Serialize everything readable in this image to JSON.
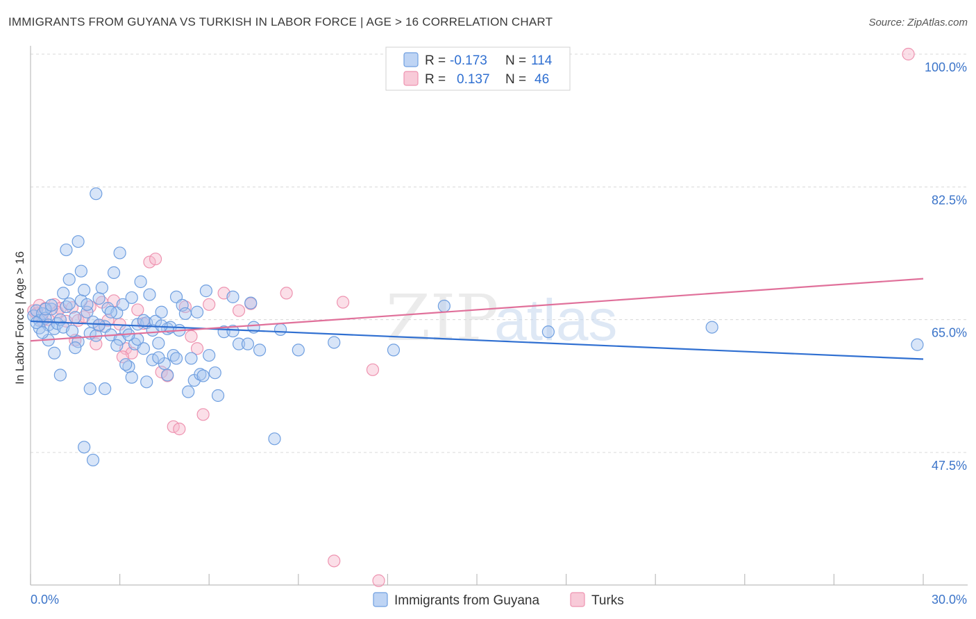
{
  "title": "IMMIGRANTS FROM GUYANA VS TURKISH IN LABOR FORCE | AGE > 16 CORRELATION CHART",
  "source": "Source: ZipAtlas.com",
  "watermark": "ZIPatlas",
  "colors": {
    "blue_fill": "#a8c6f0",
    "blue_stroke": "#6f9fe0",
    "blue_line": "#2f6fd1",
    "pink_fill": "#f6b8cb",
    "pink_stroke": "#ee93b0",
    "pink_line": "#e0709a",
    "grid": "#d8d8d8",
    "tick_text": "#3b74c9"
  },
  "legend": {
    "rows": [
      {
        "r_label": "R =",
        "r_value": "-0.173",
        "n_label": "N =",
        "n_value": "114"
      },
      {
        "r_label": "R =",
        "r_value": "0.137",
        "n_label": "N =",
        "n_value": "46"
      }
    ]
  },
  "bottom_legend": [
    "Immigrants from Guyana",
    "Turks"
  ],
  "chart_data": {
    "type": "scatter",
    "title": "IMMIGRANTS FROM GUYANA VS TURKISH IN LABOR FORCE | AGE > 16 CORRELATION CHART",
    "xlabel": "",
    "ylabel": "In Labor Force | Age > 16",
    "xlim": [
      0,
      30
    ],
    "ylim": [
      30,
      102
    ],
    "x_tick_labels": [
      "0.0%",
      "30.0%"
    ],
    "y_ticks": [
      47.5,
      65.0,
      82.5,
      100.0
    ],
    "y_tick_labels": [
      "47.5%",
      "65.0%",
      "82.5%",
      "100.0%"
    ],
    "grid": true,
    "legend_position": "top-center",
    "series": [
      {
        "name": "Immigrants from Guyana",
        "R": -0.173,
        "N": 114,
        "trend": [
          [
            0,
            64.8
          ],
          [
            30,
            59.8
          ]
        ],
        "points": [
          [
            0.1,
            65.5
          ],
          [
            0.2,
            66.2
          ],
          [
            0.3,
            64.9
          ],
          [
            0.4,
            65.8
          ],
          [
            0.5,
            65.2
          ],
          [
            0.6,
            64.3
          ],
          [
            0.7,
            66.4
          ],
          [
            0.8,
            63.8
          ],
          [
            0.9,
            64.5
          ],
          [
            1.0,
            65.0
          ],
          [
            1.1,
            64.0
          ],
          [
            1.2,
            66.7
          ],
          [
            1.3,
            67.1
          ],
          [
            1.4,
            63.5
          ],
          [
            1.5,
            65.3
          ],
          [
            1.6,
            62.1
          ],
          [
            1.7,
            67.5
          ],
          [
            1.8,
            68.9
          ],
          [
            1.9,
            66.0
          ],
          [
            2.0,
            63.2
          ],
          [
            2.1,
            64.7
          ],
          [
            2.2,
            62.9
          ],
          [
            2.3,
            67.8
          ],
          [
            2.4,
            69.2
          ],
          [
            2.5,
            64.1
          ],
          [
            2.6,
            66.5
          ],
          [
            2.7,
            63.0
          ],
          [
            2.8,
            71.2
          ],
          [
            2.9,
            65.9
          ],
          [
            3.0,
            62.4
          ],
          [
            3.1,
            67.0
          ],
          [
            3.2,
            63.5
          ],
          [
            3.3,
            58.8
          ],
          [
            3.4,
            67.9
          ],
          [
            3.5,
            61.8
          ],
          [
            3.6,
            64.4
          ],
          [
            3.7,
            70.0
          ],
          [
            3.8,
            61.2
          ],
          [
            3.9,
            64.6
          ],
          [
            4.0,
            68.3
          ],
          [
            4.1,
            63.6
          ],
          [
            4.2,
            64.8
          ],
          [
            4.3,
            61.9
          ],
          [
            4.4,
            66.0
          ],
          [
            4.5,
            59.2
          ],
          [
            4.6,
            63.8
          ],
          [
            4.7,
            64.0
          ],
          [
            4.8,
            60.3
          ],
          [
            4.9,
            68.0
          ],
          [
            5.0,
            63.6
          ],
          [
            5.1,
            66.9
          ],
          [
            5.2,
            65.8
          ],
          [
            5.4,
            59.9
          ],
          [
            5.5,
            57.0
          ],
          [
            5.7,
            57.8
          ],
          [
            5.9,
            68.8
          ],
          [
            6.0,
            60.3
          ],
          [
            6.2,
            58.0
          ],
          [
            6.5,
            63.4
          ],
          [
            6.8,
            68.0
          ],
          [
            7.0,
            61.8
          ],
          [
            7.3,
            61.8
          ],
          [
            7.5,
            64.0
          ],
          [
            7.7,
            61.0
          ],
          [
            0.3,
            63.9
          ],
          [
            0.5,
            66.4
          ],
          [
            0.6,
            62.3
          ],
          [
            0.8,
            60.6
          ],
          [
            1.0,
            57.7
          ],
          [
            1.1,
            68.5
          ],
          [
            1.2,
            74.2
          ],
          [
            1.3,
            70.3
          ],
          [
            1.5,
            61.3
          ],
          [
            1.6,
            75.3
          ],
          [
            1.7,
            71.4
          ],
          [
            1.8,
            48.2
          ],
          [
            2.0,
            55.9
          ],
          [
            2.1,
            46.5
          ],
          [
            2.2,
            81.6
          ],
          [
            2.5,
            55.9
          ],
          [
            2.9,
            61.6
          ],
          [
            3.0,
            73.8
          ],
          [
            3.2,
            59.1
          ],
          [
            3.4,
            57.4
          ],
          [
            3.6,
            62.4
          ],
          [
            3.9,
            56.8
          ],
          [
            4.1,
            59.7
          ],
          [
            4.3,
            60.0
          ],
          [
            4.6,
            57.7
          ],
          [
            4.9,
            59.9
          ],
          [
            5.3,
            55.5
          ],
          [
            5.8,
            57.6
          ],
          [
            6.3,
            55.0
          ],
          [
            8.2,
            49.3
          ],
          [
            6.8,
            63.5
          ],
          [
            7.4,
            67.2
          ],
          [
            8.4,
            63.7
          ],
          [
            9.0,
            61.0
          ],
          [
            10.2,
            62.0
          ],
          [
            12.2,
            61.0
          ],
          [
            13.9,
            66.8
          ],
          [
            17.4,
            63.4
          ],
          [
            22.9,
            64.0
          ],
          [
            29.8,
            61.7
          ],
          [
            0.2,
            64.6
          ],
          [
            0.4,
            63.3
          ],
          [
            0.7,
            66.9
          ],
          [
            1.9,
            67.0
          ],
          [
            2.3,
            64.3
          ],
          [
            2.7,
            66.0
          ],
          [
            3.3,
            63.0
          ],
          [
            3.8,
            64.9
          ],
          [
            4.4,
            64.2
          ],
          [
            5.6,
            66.0
          ]
        ]
      },
      {
        "name": "Turks",
        "R": 0.137,
        "N": 46,
        "trend": [
          [
            0,
            62.2
          ],
          [
            30,
            70.4
          ]
        ],
        "points": [
          [
            0.1,
            66.2
          ],
          [
            0.2,
            65.8
          ],
          [
            0.3,
            66.9
          ],
          [
            0.5,
            66.5
          ],
          [
            0.6,
            65.0
          ],
          [
            0.8,
            67.0
          ],
          [
            1.0,
            66.5
          ],
          [
            1.2,
            64.8
          ],
          [
            1.4,
            66.6
          ],
          [
            1.6,
            64.9
          ],
          [
            1.8,
            65.4
          ],
          [
            2.0,
            66.7
          ],
          [
            2.2,
            61.8
          ],
          [
            2.4,
            67.3
          ],
          [
            2.6,
            64.9
          ],
          [
            2.8,
            67.5
          ],
          [
            3.0,
            64.4
          ],
          [
            3.2,
            61.2
          ],
          [
            3.4,
            60.6
          ],
          [
            3.6,
            66.3
          ],
          [
            3.8,
            64.5
          ],
          [
            4.0,
            72.6
          ],
          [
            4.2,
            73.0
          ],
          [
            4.4,
            58.1
          ],
          [
            4.6,
            57.6
          ],
          [
            4.8,
            50.9
          ],
          [
            5.0,
            50.6
          ],
          [
            5.2,
            66.7
          ],
          [
            5.4,
            62.8
          ],
          [
            5.6,
            61.2
          ],
          [
            5.8,
            52.5
          ],
          [
            6.0,
            67.0
          ],
          [
            6.5,
            68.5
          ],
          [
            7.0,
            66.2
          ],
          [
            7.4,
            67.1
          ],
          [
            8.6,
            68.5
          ],
          [
            10.5,
            67.3
          ],
          [
            10.2,
            33.2
          ],
          [
            11.5,
            58.4
          ],
          [
            11.7,
            30.6
          ],
          [
            29.5,
            100.0
          ],
          [
            0.4,
            64.9
          ],
          [
            0.9,
            66.0
          ],
          [
            1.5,
            62.3
          ],
          [
            2.3,
            64.2
          ],
          [
            3.1,
            60.1
          ]
        ]
      }
    ]
  }
}
